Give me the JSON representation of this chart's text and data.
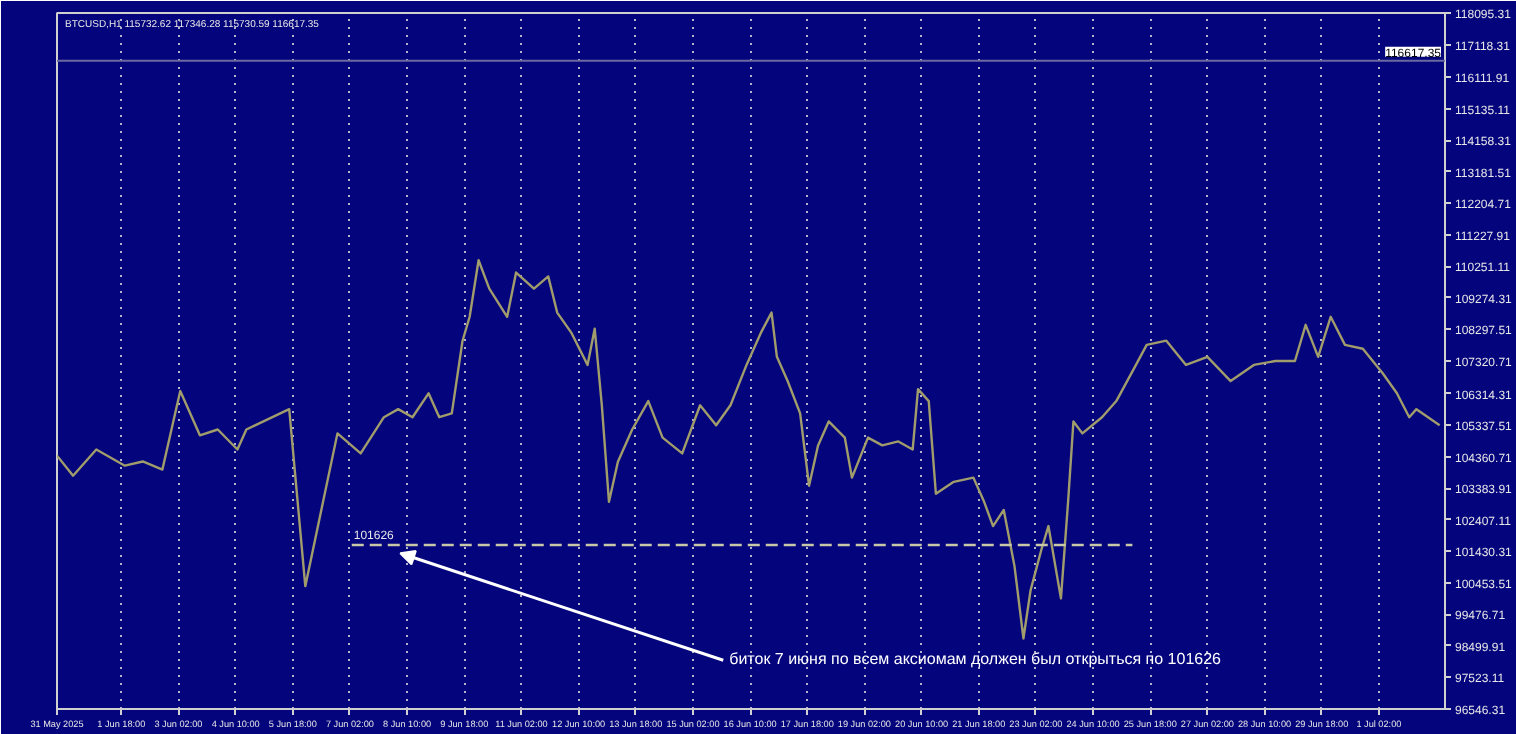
{
  "chart_data": {
    "type": "line",
    "title": "BTCUSD,H1  115732.62 117346.28 115730.59 116617.35",
    "x": [
      "2025-05-31T06:00",
      "2025-05-31T15:00",
      "2025-06-01T04:00",
      "2025-06-01T20:00",
      "2025-06-02T06:00",
      "2025-06-02T17:00",
      "2025-06-03T03:00",
      "2025-06-03T14:00",
      "2025-06-04T00:00",
      "2025-06-04T11:00",
      "2025-06-04T16:00",
      "2025-06-05T16:00",
      "2025-06-06T01:00",
      "2025-06-06T19:00",
      "2025-06-07T08:00",
      "2025-06-07T21:00",
      "2025-06-08T05:00",
      "2025-06-08T13:00",
      "2025-06-08T22:00",
      "2025-06-09T04:00",
      "2025-06-09T11:00",
      "2025-06-09T17:00",
      "2025-06-09T21:00",
      "2025-06-10T02:00",
      "2025-06-10T08:00",
      "2025-06-10T18:00",
      "2025-06-10T23:00",
      "2025-06-11T09:00",
      "2025-06-11T17:00",
      "2025-06-11T22:00",
      "2025-06-12T06:00",
      "2025-06-12T15:00",
      "2025-06-12T19:00",
      "2025-06-12T23:00",
      "2025-06-13T03:00",
      "2025-06-13T08:00",
      "2025-06-13T16:00",
      "2025-06-14T01:00",
      "2025-06-14T09:00",
      "2025-06-14T20:00",
      "2025-06-15T06:00",
      "2025-06-15T15:00",
      "2025-06-15T23:00",
      "2025-06-16T08:00",
      "2025-06-16T16:00",
      "2025-06-16T22:00",
      "2025-06-17T01:00",
      "2025-06-17T07:00",
      "2025-06-17T14:00",
      "2025-06-17T19:00",
      "2025-06-18T00:00",
      "2025-06-18T06:00",
      "2025-06-18T15:00",
      "2025-06-18T19:00",
      "2025-06-19T04:00",
      "2025-06-19T12:00",
      "2025-06-19T21:00",
      "2025-06-20T05:00",
      "2025-06-20T08:00",
      "2025-06-20T14:00",
      "2025-06-20T18:00",
      "2025-06-21T04:00",
      "2025-06-21T15:00",
      "2025-06-21T21:00",
      "2025-06-22T02:00",
      "2025-06-22T08:00",
      "2025-06-22T14:00",
      "2025-06-22T19:00",
      "2025-06-22T23:00",
      "2025-06-23T05:00",
      "2025-06-23T09:00",
      "2025-06-23T16:00",
      "2025-06-23T20:00",
      "2025-06-23T23:00",
      "2025-06-24T04:00",
      "2025-06-24T15:00",
      "2025-06-24T23:00",
      "2025-06-25T10:00",
      "2025-06-25T16:00",
      "2025-06-26T03:00",
      "2025-06-26T14:00",
      "2025-06-27T02:00",
      "2025-06-27T15:00",
      "2025-06-28T04:00",
      "2025-06-28T16:00",
      "2025-06-29T03:00",
      "2025-06-29T09:00",
      "2025-06-29T16:00",
      "2025-06-29T23:00",
      "2025-06-30T07:00",
      "2025-06-30T17:00",
      "2025-07-01T04:00",
      "2025-07-01T12:00",
      "2025-07-01T19:00",
      "2025-07-01T23:00",
      "2025-07-02T12:00"
    ],
    "series": [
      {
        "color": "#a09c6c",
        "values": [
          104390,
          103770,
          104580,
          104080,
          104210,
          103960,
          106390,
          105020,
          105200,
          104580,
          105200,
          105830,
          100350,
          105080,
          104460,
          105580,
          105830,
          105580,
          106320,
          105580,
          105700,
          107940,
          108690,
          110440,
          109560,
          108690,
          110060,
          109560,
          109940,
          108820,
          108190,
          107200,
          108320,
          105950,
          102960,
          104200,
          105200,
          106080,
          104950,
          104460,
          105950,
          105330,
          105950,
          107200,
          108190,
          108820,
          107450,
          106700,
          105700,
          103460,
          104700,
          105450,
          104950,
          103710,
          104950,
          104710,
          104830,
          104580,
          106450,
          106080,
          103210,
          103580,
          103710,
          102960,
          102210,
          102710,
          100970,
          98730,
          100220,
          101470,
          102210,
          99970,
          102960,
          105450,
          105080,
          105580,
          106080,
          107200,
          107820,
          107950,
          107200,
          107450,
          106700,
          107200,
          107320,
          107320,
          108440,
          107450,
          108690,
          107820,
          107700,
          106950,
          106330,
          105580,
          105830,
          105330
        ]
      },
      {
        "type": "line",
        "color": "#c8c8a8",
        "line_style": "dashed",
        "x": [
          "2025-06-07T03:00",
          "2025-06-25T08:00"
        ],
        "values": [
          101626,
          101626
        ]
      }
    ],
    "ref_lines": [
      {
        "axis": "y",
        "value": 116617.35,
        "label": "116617.35",
        "color": "#6a6aa0"
      }
    ],
    "annotations": [
      {
        "text": "101626",
        "x": "2025-06-07T03:00",
        "y": 101626
      },
      "биток  7 июня по всем аксиомам должен был открыться по 101626"
    ],
    "xlim": [
      "2025-05-31T06:00",
      "2025-07-02T15:00"
    ],
    "xticks": [
      {
        "value": "2025-05-31T06:00",
        "label": "31 May 2025"
      },
      {
        "value": "2025-06-01T18:00",
        "label": "1 Jun 18:00"
      },
      {
        "value": "2025-06-03T02:00",
        "label": "3 Jun 02:00"
      },
      {
        "value": "2025-06-04T10:00",
        "label": "4 Jun 10:00"
      },
      {
        "value": "2025-06-05T18:00",
        "label": "5 Jun 18:00"
      },
      {
        "value": "2025-06-07T02:00",
        "label": "7 Jun 02:00"
      },
      {
        "value": "2025-06-08T10:00",
        "label": "8 Jun 10:00"
      },
      {
        "value": "2025-06-09T18:00",
        "label": "9 Jun 18:00"
      },
      {
        "value": "2025-06-11T02:00",
        "label": "11 Jun 02:00"
      },
      {
        "value": "2025-06-12T10:00",
        "label": "12 Jun 10:00"
      },
      {
        "value": "2025-06-13T18:00",
        "label": "13 Jun 18:00"
      },
      {
        "value": "2025-06-15T02:00",
        "label": "15 Jun 02:00"
      },
      {
        "value": "2025-06-16T10:00",
        "label": "16 Jun 10:00"
      },
      {
        "value": "2025-06-17T18:00",
        "label": "17 Jun 18:00"
      },
      {
        "value": "2025-06-19T02:00",
        "label": "19 Jun 02:00"
      },
      {
        "value": "2025-06-20T10:00",
        "label": "20 Jun 10:00"
      },
      {
        "value": "2025-06-21T18:00",
        "label": "21 Jun 18:00"
      },
      {
        "value": "2025-06-23T02:00",
        "label": "23 Jun 02:00"
      },
      {
        "value": "2025-06-24T10:00",
        "label": "24 Jun 10:00"
      },
      {
        "value": "2025-06-25T18:00",
        "label": "25 Jun 18:00"
      },
      {
        "value": "2025-06-27T02:00",
        "label": "27 Jun 02:00"
      },
      {
        "value": "2025-06-28T10:00",
        "label": "28 Jun 10:00"
      },
      {
        "value": "2025-06-29T18:00",
        "label": "29 Jun 18:00"
      },
      {
        "value": "2025-07-01T02:00",
        "label": "1 Jul 02:00"
      }
    ],
    "ylim": [
      96546.31,
      118095.31
    ],
    "yticks": [
      96546.31,
      97523.11,
      98499.91,
      99476.71,
      100453.51,
      101430.31,
      102407.11,
      103383.91,
      104360.71,
      105337.51,
      106314.31,
      107320.71,
      108297.51,
      109274.31,
      110251.11,
      111227.91,
      112204.71,
      113181.51,
      114158.31,
      115135.11,
      116111.91,
      117118.31,
      118095.31
    ],
    "grid": "x",
    "marker": "none",
    "line_style": "solid"
  }
}
